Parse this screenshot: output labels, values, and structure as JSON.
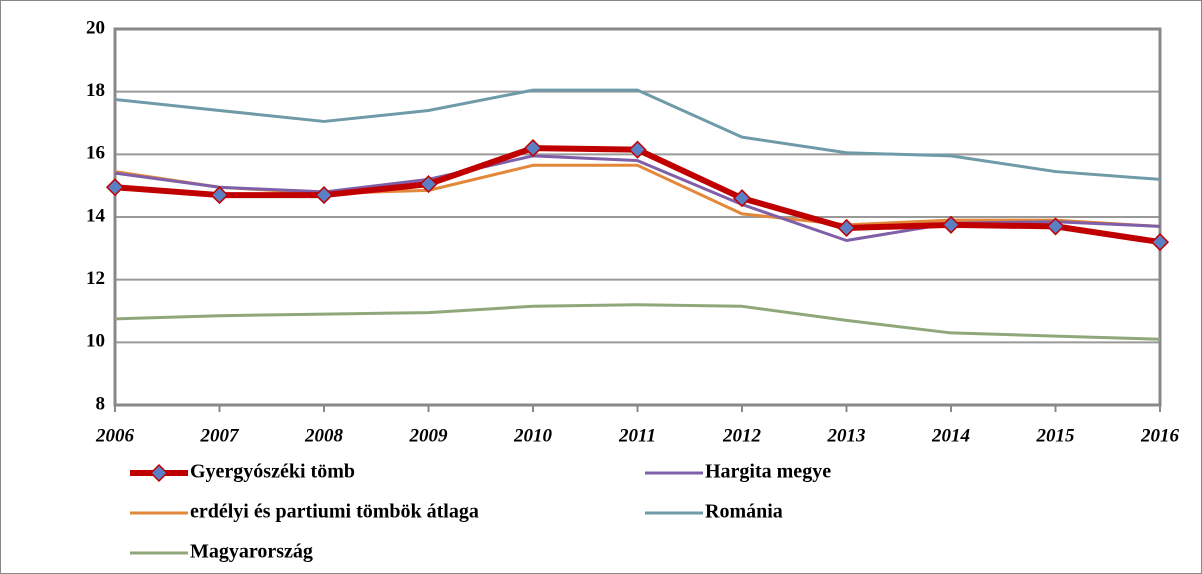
{
  "chart_data": {
    "type": "line",
    "x": [
      2006,
      2007,
      2008,
      2009,
      2010,
      2011,
      2012,
      2013,
      2014,
      2015,
      2016
    ],
    "xlim": [
      2006,
      2016
    ],
    "xticks": [
      2006,
      2007,
      2008,
      2009,
      2010,
      2011,
      2012,
      2013,
      2014,
      2015,
      2016
    ],
    "ylim": [
      8,
      20
    ],
    "yticks": [
      8,
      10,
      12,
      14,
      16,
      18,
      20
    ],
    "grid": true,
    "legend": "bottom",
    "series": [
      {
        "name": "Gyergyószéki tömb",
        "color": "#c00000",
        "marker": "diamond",
        "marker_color": "#5a7fc4",
        "values": [
          14.95,
          14.7,
          14.7,
          15.05,
          16.2,
          16.15,
          14.6,
          13.65,
          13.75,
          13.7,
          13.2
        ]
      },
      {
        "name": "Hargita megye",
        "color": "#7f5fa8",
        "values": [
          15.4,
          14.95,
          14.8,
          15.2,
          15.95,
          15.8,
          14.4,
          13.25,
          13.8,
          13.85,
          13.7
        ]
      },
      {
        "name": "erdélyi és partiumi tömbök átlaga",
        "color": "#e3883a",
        "values": [
          15.45,
          14.95,
          14.75,
          14.85,
          15.65,
          15.65,
          14.1,
          13.75,
          13.9,
          13.9,
          13.7
        ]
      },
      {
        "name": "Románia",
        "color": "#6f9aa8",
        "values": [
          17.75,
          17.4,
          17.05,
          17.4,
          18.05,
          18.05,
          16.55,
          16.05,
          15.95,
          15.45,
          15.2
        ]
      },
      {
        "name": "Magyarország",
        "color": "#8fa77a",
        "values": [
          10.75,
          10.85,
          10.9,
          10.95,
          11.15,
          11.2,
          11.15,
          10.7,
          10.3,
          10.2,
          10.1
        ]
      }
    ]
  }
}
